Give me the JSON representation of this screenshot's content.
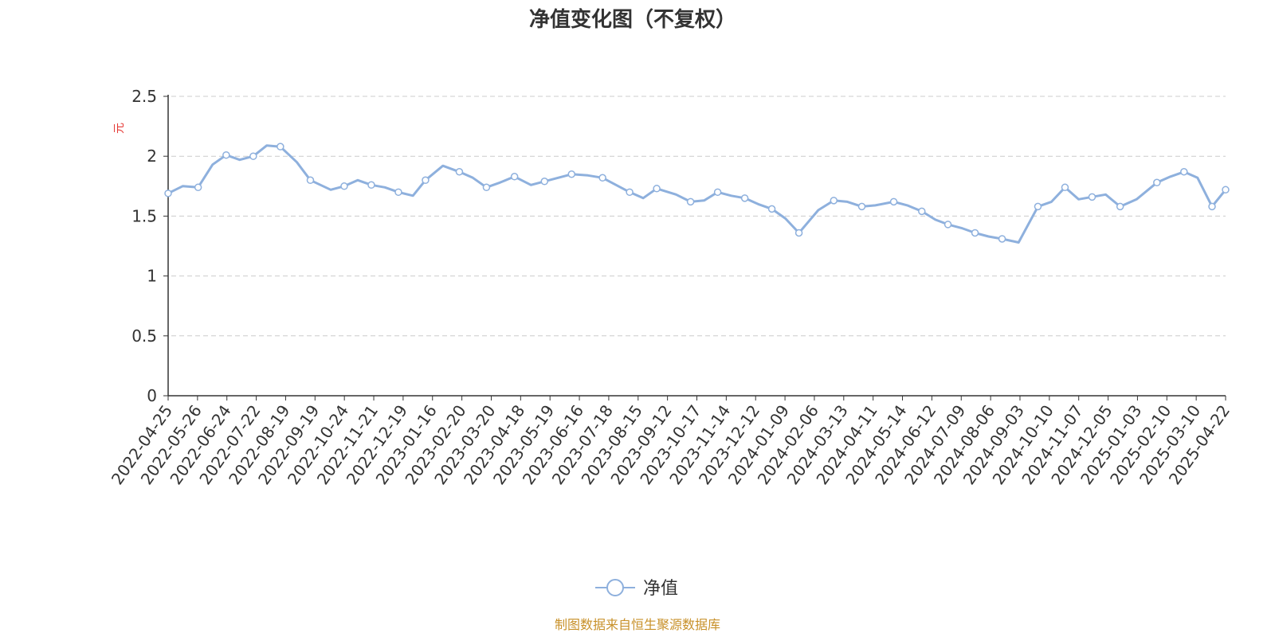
{
  "chart_data": {
    "type": "line",
    "title": "净值变化图（不复权）",
    "ylabel": "元",
    "ylim": [
      0,
      2.5
    ],
    "yticks": [
      "0",
      "0.5",
      "1",
      "1.5",
      "2",
      "2.5"
    ],
    "yticks_values": [
      0,
      0.5,
      1,
      1.5,
      2,
      2.5
    ],
    "grid": "horizontal-dashed",
    "legend_position": "bottom-center",
    "line_color": "#8eb0dd",
    "ylabel_color": "#e53935",
    "source_color": "#c8912a",
    "x_tick_labels": [
      "2022-04-25",
      "2022-05-26",
      "2022-06-24",
      "2022-07-22",
      "2022-08-19",
      "2022-09-19",
      "2022-10-24",
      "2022-11-21",
      "2022-12-19",
      "2023-01-16",
      "2023-02-20",
      "2023-03-20",
      "2023-04-18",
      "2023-05-19",
      "2023-06-16",
      "2023-07-18",
      "2023-08-15",
      "2023-09-12",
      "2023-10-17",
      "2023-11-14",
      "2023-12-12",
      "2024-01-09",
      "2024-02-06",
      "2024-03-13",
      "2024-04-11",
      "2024-05-14",
      "2024-06-12",
      "2024-07-09",
      "2024-08-06",
      "2024-09-03",
      "2024-10-10",
      "2024-11-07",
      "2024-12-05",
      "2025-01-03",
      "2025-02-10",
      "2025-03-10",
      "2025-04-22"
    ],
    "series": [
      {
        "name": "净值",
        "x": [
          "2022-04-25",
          "2022-05-10",
          "2022-05-26",
          "2022-06-10",
          "2022-06-24",
          "2022-07-08",
          "2022-07-22",
          "2022-08-05",
          "2022-08-19",
          "2022-09-05",
          "2022-09-19",
          "2022-10-10",
          "2022-10-24",
          "2022-11-07",
          "2022-11-21",
          "2022-12-05",
          "2022-12-19",
          "2023-01-03",
          "2023-01-16",
          "2023-02-03",
          "2023-02-20",
          "2023-03-06",
          "2023-03-20",
          "2023-04-03",
          "2023-04-18",
          "2023-05-05",
          "2023-05-19",
          "2023-06-02",
          "2023-06-16",
          "2023-07-03",
          "2023-07-18",
          "2023-08-01",
          "2023-08-15",
          "2023-08-29",
          "2023-09-12",
          "2023-10-02",
          "2023-10-17",
          "2023-10-31",
          "2023-11-14",
          "2023-11-28",
          "2023-12-12",
          "2023-12-26",
          "2024-01-09",
          "2024-01-23",
          "2024-02-06",
          "2024-02-26",
          "2024-03-13",
          "2024-03-27",
          "2024-04-11",
          "2024-04-25",
          "2024-05-14",
          "2024-05-28",
          "2024-06-12",
          "2024-06-26",
          "2024-07-09",
          "2024-07-23",
          "2024-08-06",
          "2024-08-20",
          "2024-09-03",
          "2024-09-20",
          "2024-10-10",
          "2024-10-24",
          "2024-11-07",
          "2024-11-21",
          "2024-12-05",
          "2024-12-19",
          "2025-01-03",
          "2025-01-20",
          "2025-02-10",
          "2025-02-24",
          "2025-03-10",
          "2025-03-24",
          "2025-04-08",
          "2025-04-22"
        ],
        "values": [
          1.69,
          1.75,
          1.74,
          1.93,
          2.01,
          1.97,
          2.0,
          2.09,
          2.08,
          1.95,
          1.8,
          1.72,
          1.75,
          1.8,
          1.76,
          1.74,
          1.7,
          1.67,
          1.8,
          1.92,
          1.87,
          1.82,
          1.74,
          1.78,
          1.83,
          1.76,
          1.79,
          1.82,
          1.85,
          1.84,
          1.82,
          1.76,
          1.7,
          1.65,
          1.73,
          1.68,
          1.62,
          1.63,
          1.7,
          1.67,
          1.65,
          1.6,
          1.56,
          1.48,
          1.36,
          1.55,
          1.63,
          1.62,
          1.58,
          1.59,
          1.62,
          1.59,
          1.54,
          1.47,
          1.43,
          1.4,
          1.36,
          1.33,
          1.31,
          1.28,
          1.58,
          1.62,
          1.74,
          1.64,
          1.66,
          1.68,
          1.58,
          1.64,
          1.78,
          1.83,
          1.87,
          1.82,
          1.58,
          1.72
        ]
      }
    ],
    "legend": [
      "净值"
    ],
    "source": "制图数据来自恒生聚源数据库"
  }
}
